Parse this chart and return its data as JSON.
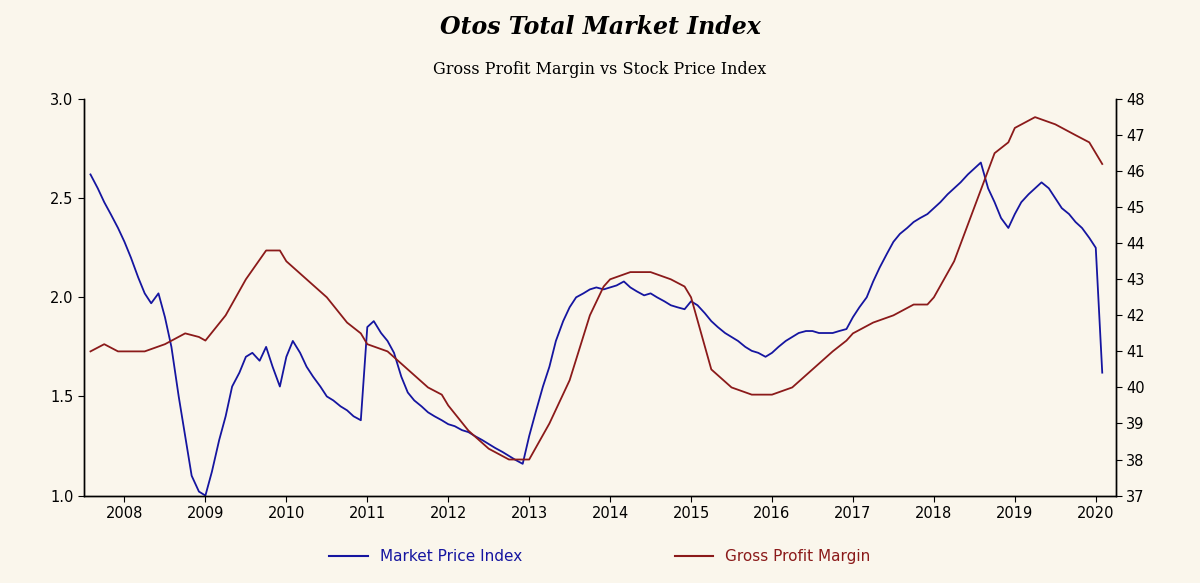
{
  "title": "Otos Total Market Index",
  "subtitle": "Gross Profit Margin vs Stock Price Index",
  "background_color": "#FAF6EC",
  "left_ylim": [
    1.0,
    3.0
  ],
  "right_ylim": [
    37,
    48
  ],
  "left_yticks": [
    1.0,
    1.5,
    2.0,
    2.5,
    3.0
  ],
  "right_yticks": [
    37,
    38,
    39,
    40,
    41,
    42,
    43,
    44,
    45,
    46,
    47,
    48
  ],
  "xtick_labels": [
    "2008",
    "2009",
    "2010",
    "2011",
    "2012",
    "2013",
    "2014",
    "2015",
    "2016",
    "2017",
    "2018",
    "2019",
    "2020"
  ],
  "legend_left": "Market Price Index",
  "legend_right": "Gross Profit Margin",
  "blue_color": "#1515a0",
  "red_color": "#8B1A1A",
  "market_price_index_x": [
    2007.58,
    2007.67,
    2007.75,
    2007.83,
    2007.92,
    2008.0,
    2008.08,
    2008.17,
    2008.25,
    2008.33,
    2008.42,
    2008.5,
    2008.58,
    2008.67,
    2008.75,
    2008.83,
    2008.92,
    2009.0,
    2009.08,
    2009.17,
    2009.25,
    2009.33,
    2009.42,
    2009.5,
    2009.58,
    2009.67,
    2009.75,
    2009.83,
    2009.92,
    2010.0,
    2010.08,
    2010.17,
    2010.25,
    2010.33,
    2010.42,
    2010.5,
    2010.58,
    2010.67,
    2010.75,
    2010.83,
    2010.92,
    2011.0,
    2011.08,
    2011.17,
    2011.25,
    2011.33,
    2011.42,
    2011.5,
    2011.58,
    2011.67,
    2011.75,
    2011.83,
    2011.92,
    2012.0,
    2012.08,
    2012.17,
    2012.25,
    2012.33,
    2012.42,
    2012.5,
    2012.58,
    2012.67,
    2012.75,
    2012.83,
    2012.92,
    2013.0,
    2013.08,
    2013.17,
    2013.25,
    2013.33,
    2013.42,
    2013.5,
    2013.58,
    2013.67,
    2013.75,
    2013.83,
    2013.92,
    2014.0,
    2014.08,
    2014.17,
    2014.25,
    2014.33,
    2014.42,
    2014.5,
    2014.58,
    2014.67,
    2014.75,
    2014.83,
    2014.92,
    2015.0,
    2015.08,
    2015.17,
    2015.25,
    2015.33,
    2015.42,
    2015.5,
    2015.58,
    2015.67,
    2015.75,
    2015.83,
    2015.92,
    2016.0,
    2016.08,
    2016.17,
    2016.25,
    2016.33,
    2016.42,
    2016.5,
    2016.58,
    2016.67,
    2016.75,
    2016.83,
    2016.92,
    2017.0,
    2017.08,
    2017.17,
    2017.25,
    2017.33,
    2017.42,
    2017.5,
    2017.58,
    2017.67,
    2017.75,
    2017.83,
    2017.92,
    2018.0,
    2018.08,
    2018.17,
    2018.25,
    2018.33,
    2018.42,
    2018.5,
    2018.58,
    2018.67,
    2018.75,
    2018.83,
    2018.92,
    2019.0,
    2019.08,
    2019.17,
    2019.25,
    2019.33,
    2019.42,
    2019.5,
    2019.58,
    2019.67,
    2019.75,
    2019.83,
    2019.92,
    2020.0,
    2020.08
  ],
  "market_price_index_y": [
    2.62,
    2.55,
    2.48,
    2.42,
    2.35,
    2.28,
    2.2,
    2.1,
    2.02,
    1.97,
    2.02,
    1.9,
    1.75,
    1.5,
    1.3,
    1.1,
    1.02,
    1.0,
    1.12,
    1.28,
    1.4,
    1.55,
    1.62,
    1.7,
    1.72,
    1.68,
    1.75,
    1.65,
    1.55,
    1.7,
    1.78,
    1.72,
    1.65,
    1.6,
    1.55,
    1.5,
    1.48,
    1.45,
    1.43,
    1.4,
    1.38,
    1.85,
    1.88,
    1.82,
    1.78,
    1.72,
    1.6,
    1.52,
    1.48,
    1.45,
    1.42,
    1.4,
    1.38,
    1.36,
    1.35,
    1.33,
    1.32,
    1.3,
    1.28,
    1.26,
    1.24,
    1.22,
    1.2,
    1.18,
    1.16,
    1.3,
    1.42,
    1.55,
    1.65,
    1.78,
    1.88,
    1.95,
    2.0,
    2.02,
    2.04,
    2.05,
    2.04,
    2.05,
    2.06,
    2.08,
    2.05,
    2.03,
    2.01,
    2.02,
    2.0,
    1.98,
    1.96,
    1.95,
    1.94,
    1.98,
    1.96,
    1.92,
    1.88,
    1.85,
    1.82,
    1.8,
    1.78,
    1.75,
    1.73,
    1.72,
    1.7,
    1.72,
    1.75,
    1.78,
    1.8,
    1.82,
    1.83,
    1.83,
    1.82,
    1.82,
    1.82,
    1.83,
    1.84,
    1.9,
    1.95,
    2.0,
    2.08,
    2.15,
    2.22,
    2.28,
    2.32,
    2.35,
    2.38,
    2.4,
    2.42,
    2.45,
    2.48,
    2.52,
    2.55,
    2.58,
    2.62,
    2.65,
    2.68,
    2.55,
    2.48,
    2.4,
    2.35,
    2.42,
    2.48,
    2.52,
    2.55,
    2.58,
    2.55,
    2.5,
    2.45,
    2.42,
    2.38,
    2.35,
    2.3,
    2.25,
    1.62
  ],
  "gross_profit_margin_x": [
    2007.58,
    2007.75,
    2007.92,
    2008.0,
    2008.25,
    2008.5,
    2008.75,
    2008.92,
    2009.0,
    2009.25,
    2009.5,
    2009.75,
    2009.92,
    2010.0,
    2010.25,
    2010.5,
    2010.75,
    2010.92,
    2011.0,
    2011.25,
    2011.5,
    2011.75,
    2011.92,
    2012.0,
    2012.25,
    2012.5,
    2012.75,
    2012.92,
    2013.0,
    2013.25,
    2013.5,
    2013.75,
    2013.92,
    2014.0,
    2014.25,
    2014.5,
    2014.75,
    2014.92,
    2015.0,
    2015.25,
    2015.5,
    2015.75,
    2015.92,
    2016.0,
    2016.25,
    2016.5,
    2016.75,
    2016.92,
    2017.0,
    2017.25,
    2017.5,
    2017.75,
    2017.92,
    2018.0,
    2018.25,
    2018.5,
    2018.75,
    2018.92,
    2019.0,
    2019.25,
    2019.5,
    2019.75,
    2019.92,
    2020.08
  ],
  "gross_profit_margin_y": [
    41.0,
    41.2,
    41.0,
    41.0,
    41.0,
    41.2,
    41.5,
    41.4,
    41.3,
    42.0,
    43.0,
    43.8,
    43.8,
    43.5,
    43.0,
    42.5,
    41.8,
    41.5,
    41.2,
    41.0,
    40.5,
    40.0,
    39.8,
    39.5,
    38.8,
    38.3,
    38.0,
    38.0,
    38.0,
    39.0,
    40.2,
    42.0,
    42.8,
    43.0,
    43.2,
    43.2,
    43.0,
    42.8,
    42.5,
    40.5,
    40.0,
    39.8,
    39.8,
    39.8,
    40.0,
    40.5,
    41.0,
    41.3,
    41.5,
    41.8,
    42.0,
    42.3,
    42.3,
    42.5,
    43.5,
    45.0,
    46.5,
    46.8,
    47.2,
    47.5,
    47.3,
    47.0,
    46.8,
    46.2
  ]
}
